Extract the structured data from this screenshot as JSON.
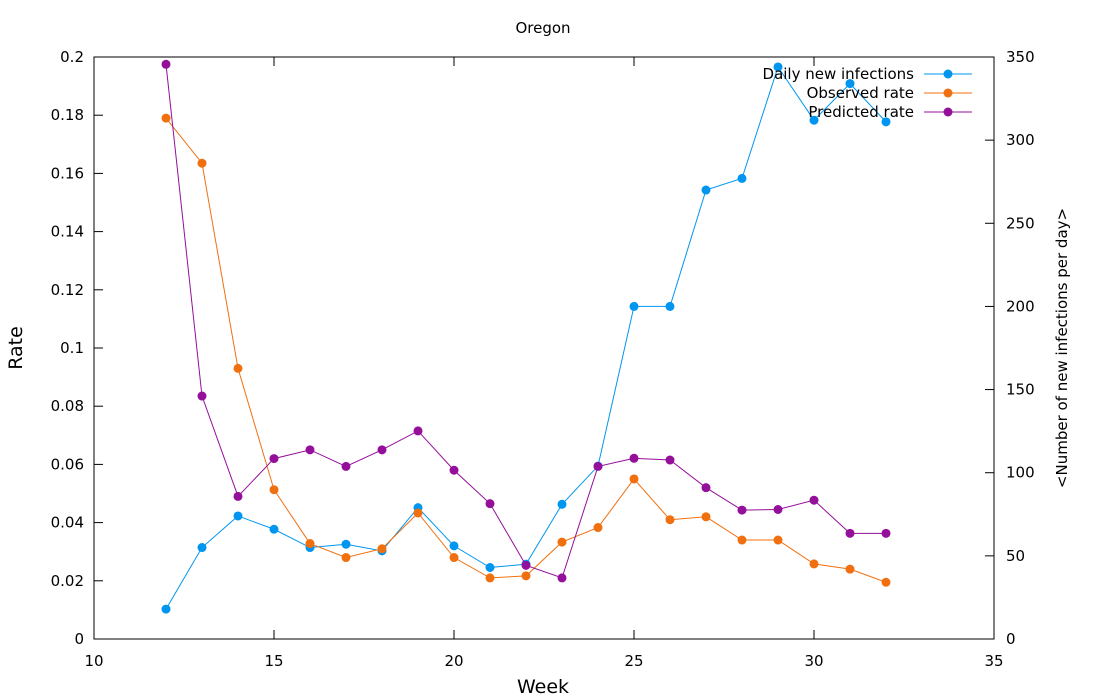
{
  "chart_data": {
    "type": "line",
    "title": "Oregon",
    "xlabel": "Week",
    "ylabel": "Rate",
    "y2label": "<Number of new infections per day>",
    "xlim": [
      10,
      35
    ],
    "ylim": [
      0,
      0.2
    ],
    "y2lim": [
      0,
      350
    ],
    "x_ticks": [
      10,
      15,
      20,
      25,
      30,
      35
    ],
    "y_ticks": [
      0,
      0.02,
      0.04,
      0.06,
      0.08,
      0.1,
      0.12,
      0.14,
      0.16,
      0.18,
      0.2
    ],
    "y2_ticks": [
      0,
      50,
      100,
      150,
      200,
      250,
      300,
      350
    ],
    "x_tick_labels": [
      "10",
      "15",
      "20",
      "25",
      "30",
      "35"
    ],
    "y_tick_labels": [
      "0",
      "0.02",
      "0.04",
      "0.06",
      "0.08",
      "0.1",
      "0.12",
      "0.14",
      "0.16",
      "0.18",
      "0.2"
    ],
    "y2_tick_labels": [
      "0",
      "50",
      "100",
      "150",
      "200",
      "250",
      "300",
      "350"
    ],
    "grid": false,
    "legend_position": "top-right",
    "x": [
      12,
      13,
      14,
      15,
      16,
      17,
      18,
      19,
      20,
      21,
      22,
      23,
      24,
      25,
      26,
      27,
      28,
      29,
      30,
      31,
      32
    ],
    "series": [
      {
        "name": "Daily new infections",
        "axis": "y2",
        "color": "#0096f0",
        "values": [
          18,
          55,
          74,
          66,
          55,
          57,
          53,
          79,
          56,
          43,
          45,
          81,
          104,
          200,
          200,
          270,
          277,
          344,
          312,
          334,
          311
        ]
      },
      {
        "name": "Observed rate",
        "axis": "y",
        "color": "#f07010",
        "values": [
          0.179,
          0.1635,
          0.093,
          0.0513,
          0.0328,
          0.028,
          0.031,
          0.0433,
          0.028,
          0.021,
          0.0217,
          0.0333,
          0.0383,
          0.055,
          0.041,
          0.042,
          0.034,
          0.034,
          0.0258,
          0.024,
          0.0195
        ]
      },
      {
        "name": "Predicted rate",
        "axis": "y",
        "color": "#940f9a",
        "values": [
          0.1975,
          0.0835,
          0.049,
          0.062,
          0.065,
          0.0593,
          0.065,
          0.0715,
          0.058,
          0.0465,
          0.0253,
          0.021,
          0.0593,
          0.0621,
          0.0615,
          0.052,
          0.0443,
          0.0445,
          0.0477,
          0.0363,
          0.0363
        ]
      }
    ]
  }
}
